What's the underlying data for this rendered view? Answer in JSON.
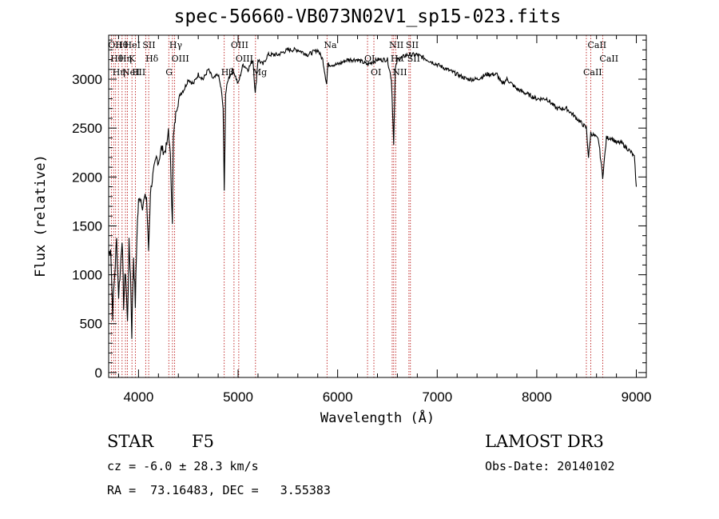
{
  "header": {
    "title": "spec-56660-VB073N02V1_sp15-023.fits"
  },
  "footer": {
    "object_class": "STAR",
    "subclass": "F5",
    "survey": "LAMOST DR3",
    "cz": "cz = -6.0 ± 28.3 km/s",
    "obs_date": "Obs-Date: 20140102",
    "coords": "RA =  73.16483, DEC =   3.55383"
  },
  "colors": {
    "spectrum": "#000000",
    "line_markers": "#b40000",
    "axes": "#000000"
  },
  "chart_data": {
    "type": "line",
    "xlabel": "Wavelength (Å)",
    "ylabel": "Flux (relative)",
    "xlim": [
      3700,
      9100
    ],
    "ylim": [
      -50,
      3450
    ],
    "xticks": [
      4000,
      5000,
      6000,
      7000,
      8000,
      9000
    ],
    "yticks": [
      0,
      500,
      1000,
      1500,
      2000,
      2500,
      3000
    ],
    "grid": false,
    "series": [
      {
        "x": [
          3700,
          3720,
          3740,
          3760,
          3780,
          3800,
          3820,
          3835,
          3850,
          3870,
          3889,
          3905,
          3920,
          3933,
          3950,
          3968,
          3985,
          4000,
          4020,
          4040,
          4060,
          4080,
          4101,
          4120,
          4150,
          4180,
          4200,
          4230,
          4260,
          4290,
          4300,
          4320,
          4340,
          4350,
          4380,
          4420,
          4460,
          4500,
          4550,
          4600,
          4650,
          4700,
          4750,
          4800,
          4830,
          4850,
          4861,
          4875,
          4900,
          4950,
          5000,
          5050,
          5100,
          5150,
          5172,
          5200,
          5250,
          5300,
          5400,
          5500,
          5600,
          5700,
          5800,
          5850,
          5890,
          5900,
          5950,
          6000,
          6100,
          6200,
          6300,
          6400,
          6500,
          6540,
          6563,
          6580,
          6600,
          6700,
          6800,
          6900,
          7000,
          7100,
          7200,
          7300,
          7400,
          7500,
          7600,
          7650,
          7700,
          7800,
          7900,
          8000,
          8100,
          8200,
          8300,
          8400,
          8498,
          8520,
          8542,
          8580,
          8620,
          8662,
          8700,
          8750,
          8800,
          8850,
          8900,
          8950,
          8980,
          9000
        ],
        "y": [
          1200,
          1300,
          600,
          1000,
          1350,
          800,
          1100,
          1400,
          700,
          1050,
          500,
          1300,
          1000,
          400,
          1200,
          700,
          1450,
          1750,
          1800,
          1700,
          1780,
          1800,
          1250,
          1850,
          2050,
          2200,
          2150,
          2300,
          2250,
          2350,
          2500,
          2200,
          1550,
          2400,
          2700,
          2850,
          2900,
          3000,
          2950,
          3050,
          3000,
          3100,
          3000,
          3050,
          2900,
          2700,
          1850,
          2850,
          3000,
          3100,
          2950,
          3150,
          3100,
          3200,
          2850,
          3200,
          3150,
          3250,
          3250,
          3300,
          3300,
          3250,
          3300,
          3200,
          2950,
          3150,
          3150,
          3150,
          3200,
          3200,
          3150,
          3200,
          3200,
          3000,
          2350,
          3100,
          3200,
          3250,
          3250,
          3200,
          3150,
          3100,
          3050,
          3000,
          3000,
          3050,
          3050,
          2950,
          3000,
          2900,
          2850,
          2800,
          2800,
          2700,
          2700,
          2600,
          2500,
          2200,
          2450,
          2420,
          2380,
          2000,
          2400,
          2400,
          2350,
          2350,
          2300,
          2250,
          2200,
          1900
        ]
      }
    ],
    "line_markers": [
      {
        "x": 3727,
        "label": "OII"
      },
      {
        "x": 3750,
        "label": "Hθ"
      },
      {
        "x": 3770,
        "label": "Hη"
      },
      {
        "x": 3798,
        "label": "Hθ"
      },
      {
        "x": 3835,
        "label": "Hη"
      },
      {
        "x": 3869,
        "label": "NeIII"
      },
      {
        "x": 3889,
        "label": "HeI"
      },
      {
        "x": 3934,
        "label": "K"
      },
      {
        "x": 3968,
        "label": "H"
      },
      {
        "x": 4072,
        "label": "SII"
      },
      {
        "x": 4102,
        "label": "Hδ"
      },
      {
        "x": 4304,
        "label": "G"
      },
      {
        "x": 4341,
        "label": "Hγ"
      },
      {
        "x": 4363,
        "label": "OIII"
      },
      {
        "x": 4861,
        "label": "Hβ"
      },
      {
        "x": 4959,
        "label": "OIII"
      },
      {
        "x": 5007,
        "label": "OIII"
      },
      {
        "x": 5175,
        "label": "Mg"
      },
      {
        "x": 5893,
        "label": "Na"
      },
      {
        "x": 6300,
        "label": "OI"
      },
      {
        "x": 6364,
        "label": "OI"
      },
      {
        "x": 6548,
        "label": "NII"
      },
      {
        "x": 6563,
        "label": "Hα"
      },
      {
        "x": 6583,
        "label": "NII"
      },
      {
        "x": 6716,
        "label": "SII"
      },
      {
        "x": 6731,
        "label": "SII"
      },
      {
        "x": 8498,
        "label": "CaII"
      },
      {
        "x": 8542,
        "label": "CaII"
      },
      {
        "x": 8662,
        "label": "CaII"
      }
    ],
    "visible_line_labels": [
      "Hθ",
      "OII",
      "OIII",
      "Hη",
      "K",
      "HeI",
      "SII",
      "H",
      "Hδ",
      "OIII",
      "Hγ",
      "G",
      "OIII",
      "OIII",
      "Hβ",
      "OI",
      "OI",
      "Hα",
      "SII",
      "NII",
      "SII",
      "CaII",
      "CaII",
      "CaII"
    ]
  }
}
